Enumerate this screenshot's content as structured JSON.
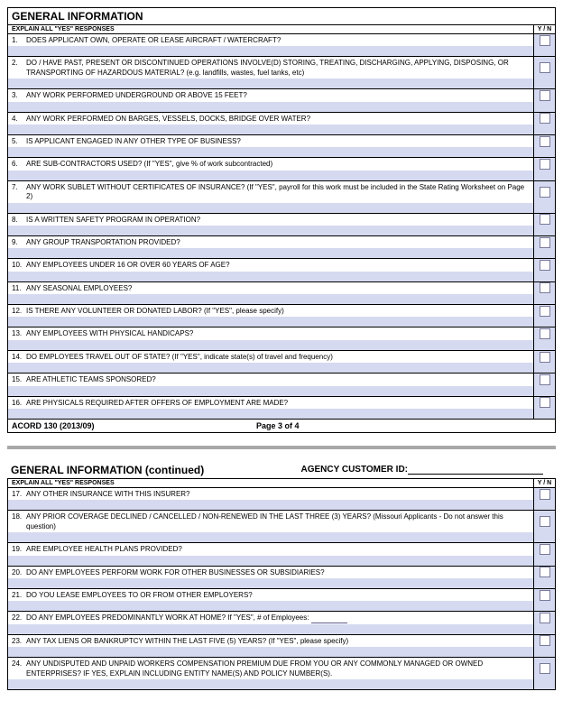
{
  "colors": {
    "fill": "#d5daf0",
    "border": "#000000",
    "checkbox_border": "#7a7a9a"
  },
  "section1_title": "GENERAL INFORMATION",
  "section2_title": "GENERAL INFORMATION (continued)",
  "agency_label": "AGENCY CUSTOMER ID:",
  "explain_label": "EXPLAIN ALL \"YES\" RESPONSES",
  "yn_label": "Y / N",
  "footer_left": "ACORD 130 (2013/09)",
  "footer_center": "Page 3 of 4",
  "questions1": [
    {
      "n": "1.",
      "t": "DOES APPLICANT OWN, OPERATE OR LEASE AIRCRAFT / WATERCRAFT?"
    },
    {
      "n": "2.",
      "t": "DO / HAVE PAST, PRESENT OR DISCONTINUED OPERATIONS INVOLVE(D) STORING, TREATING, DISCHARGING, APPLYING, DISPOSING, OR TRANSPORTING OF HAZARDOUS MATERIAL? (e.g. landfills, wastes, fuel tanks, etc)"
    },
    {
      "n": "3.",
      "t": "ANY WORK PERFORMED UNDERGROUND OR ABOVE 15 FEET?"
    },
    {
      "n": "4.",
      "t": "ANY WORK PERFORMED ON BARGES, VESSELS, DOCKS, BRIDGE OVER WATER?"
    },
    {
      "n": "5.",
      "t": "IS APPLICANT ENGAGED IN ANY OTHER TYPE OF BUSINESS?"
    },
    {
      "n": "6.",
      "t": "ARE SUB-CONTRACTORS USED?  (If \"YES\", give % of work subcontracted)"
    },
    {
      "n": "7.",
      "t": "ANY WORK SUBLET WITHOUT CERTIFICATES OF INSURANCE?  (If \"YES\", payroll for this work must be included in the State Rating Worksheet on Page 2)"
    },
    {
      "n": "8.",
      "t": "IS A WRITTEN SAFETY PROGRAM IN OPERATION?"
    },
    {
      "n": "9.",
      "t": "ANY GROUP TRANSPORTATION PROVIDED?"
    },
    {
      "n": "10.",
      "t": "ANY EMPLOYEES UNDER 16 OR OVER 60 YEARS OF AGE?"
    },
    {
      "n": "11.",
      "t": "ANY SEASONAL EMPLOYEES?"
    },
    {
      "n": "12.",
      "t": "IS THERE ANY VOLUNTEER OR DONATED LABOR?  (If \"YES\", please specify)"
    },
    {
      "n": "13.",
      "t": "ANY EMPLOYEES WITH PHYSICAL HANDICAPS?"
    },
    {
      "n": "14.",
      "t": "DO EMPLOYEES TRAVEL OUT OF STATE?  (If \"YES\", indicate state(s) of travel and frequency)"
    },
    {
      "n": "15.",
      "t": "ARE ATHLETIC TEAMS SPONSORED?"
    },
    {
      "n": "16.",
      "t": "ARE PHYSICALS REQUIRED AFTER OFFERS OF EMPLOYMENT ARE MADE?"
    }
  ],
  "questions2": [
    {
      "n": "17.",
      "t": "ANY OTHER INSURANCE WITH THIS INSURER?"
    },
    {
      "n": "18.",
      "t": "ANY PRIOR COVERAGE DECLINED / CANCELLED / NON-RENEWED IN THE LAST THREE (3) YEARS? (Missouri Applicants - Do not answer this question)"
    },
    {
      "n": "19.",
      "t": "ARE EMPLOYEE HEALTH PLANS PROVIDED?"
    },
    {
      "n": "20.",
      "t": "DO ANY EMPLOYEES PERFORM WORK FOR OTHER BUSINESSES OR SUBSIDIARIES?"
    },
    {
      "n": "21.",
      "t": "DO YOU LEASE EMPLOYEES TO OR FROM OTHER EMPLOYERS?"
    },
    {
      "n": "22.",
      "t": "DO ANY EMPLOYEES PREDOMINANTLY WORK AT HOME?  If \"YES\", # of Employees:",
      "blank": true
    },
    {
      "n": "23.",
      "t": "ANY TAX LIENS OR BANKRUPTCY WITHIN THE LAST FIVE (5) YEARS?  (If \"YES\", please specify)"
    },
    {
      "n": "24.",
      "t": "ANY UNDISPUTED AND UNPAID WORKERS COMPENSATION PREMIUM DUE FROM YOU OR ANY COMMONLY MANAGED OR OWNED ENTERPRISES? IF YES, EXPLAIN INCLUDING ENTITY NAME(S) AND POLICY NUMBER(S)."
    }
  ]
}
